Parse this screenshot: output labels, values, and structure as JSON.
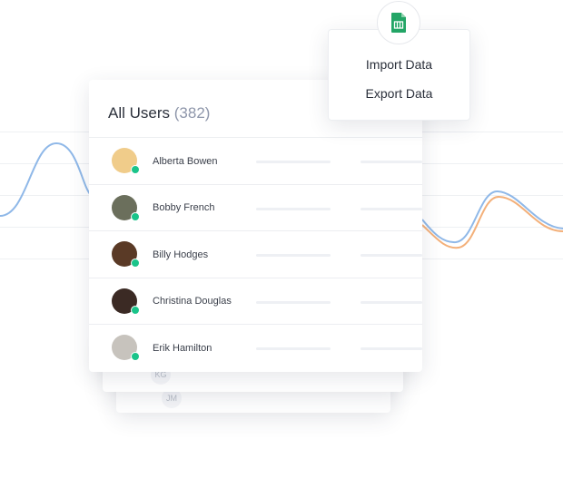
{
  "users_card": {
    "title": "All Users",
    "count": "(382)",
    "users": [
      {
        "name": "Alberta Bowen",
        "avatar_color": "#f0cc8a",
        "online": true
      },
      {
        "name": "Bobby French",
        "avatar_color": "#6b6f5c",
        "online": true
      },
      {
        "name": "Billy Hodges",
        "avatar_color": "#5a3a26",
        "online": true
      },
      {
        "name": "Christina Douglas",
        "avatar_color": "#3b2a24",
        "online": true
      },
      {
        "name": "Erik Hamilton",
        "avatar_color": "#c7c3bd",
        "online": true
      }
    ],
    "ghost_initials": [
      "KG",
      "JM"
    ]
  },
  "export_menu": {
    "icon": "google-sheets-icon",
    "items": [
      "Import Data",
      "Export Data"
    ]
  },
  "colors": {
    "online": "#1ac48a",
    "wave_blue": "#8fb8e8",
    "wave_orange": "#f3b07a",
    "sheets_green": "#23a566"
  }
}
